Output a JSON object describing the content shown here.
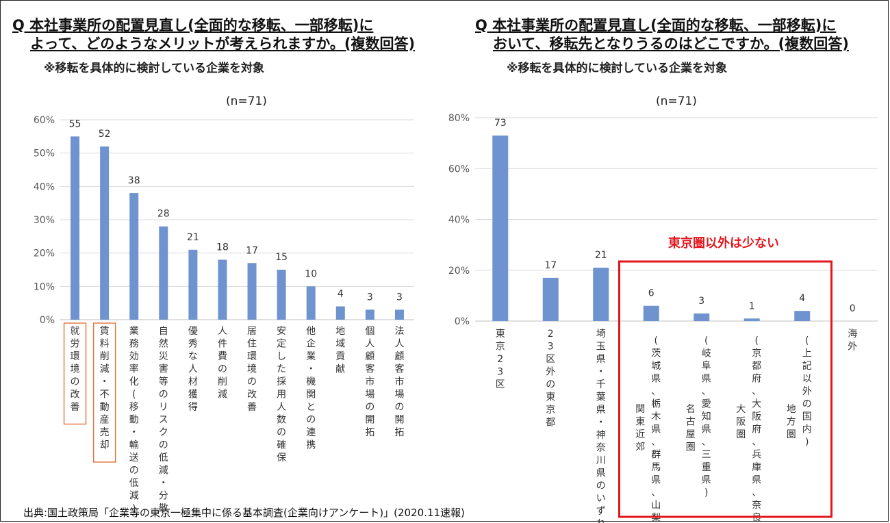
{
  "source": "出典:国土政策局「企業等の東京一極集中に係る基本調査(企業向けアンケート)」(2020.11速報)",
  "callout": "東京圏以外は少ない",
  "chart_data": [
    {
      "type": "bar",
      "title": "Q 本社事業所の配置見直し(全面的な移転、一部移転)に",
      "title2": "よって、どのようなメリットが考えられますか。(複数回答)",
      "subtitle": "※移転を具体的に検討している企業を対象",
      "n_label": "(n=71)",
      "categories": [
        "就労環境の改善",
        "賃料削減・不動産売却",
        "業務効率化(移動・輸送の低減)",
        "自然災害等のリスクの低減・分散",
        "優秀な人材獲得",
        "人件費の削減",
        "居住環境の改善",
        "安定した採用人数の確保",
        "他企業・機関との連携",
        "地域貢献",
        "個人顧客市場の開拓",
        "法人顧客市場の開拓"
      ],
      "values": [
        55,
        52,
        38,
        28,
        21,
        18,
        17,
        15,
        10,
        4,
        3,
        3
      ],
      "ylim": [
        0,
        60
      ],
      "yticks": [
        "0%",
        "10%",
        "20%",
        "30%",
        "40%",
        "50%",
        "60%"
      ],
      "highlight": [
        0,
        1
      ],
      "bar_color": "#6e93cf",
      "highlight_color": "#e0713a"
    },
    {
      "type": "bar",
      "title": "Q 本社事業所の配置見直し(全面的な移転、一部移転)に",
      "title2": "おいて、移転先となりうるのはどこですか。(複数回答)",
      "subtitle": "※移転を具体的に検討している企業を対象",
      "n_label": "(n=71)",
      "categories": [
        "東京23区",
        "23区外の東京都",
        "埼玉県・千葉県・神奈川県のいずれか",
        "関東近郊|(茨城県、栃木県、群馬県、山梨県)",
        "名古屋圏|(岐阜県、愛知県、三重県)",
        "大阪圏|(京都府、大阪府、兵庫県、奈良県)",
        "地方圏|(上記以外の国内)",
        "海外"
      ],
      "values": [
        73,
        17,
        21,
        6,
        3,
        1,
        4,
        0
      ],
      "ylim": [
        0,
        80
      ],
      "yticks": [
        "0%",
        "20%",
        "40%",
        "60%",
        "80%"
      ],
      "bar_color": "#6e93cf",
      "box_color": "#e3161c"
    }
  ]
}
